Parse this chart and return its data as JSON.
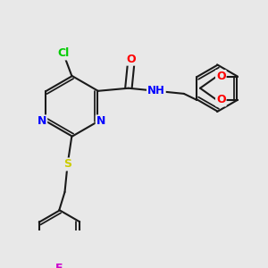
{
  "bg_color": "#e8e8e8",
  "bond_color": "#1a1a1a",
  "atom_colors": {
    "Cl": "#00cc00",
    "N": "#0000ff",
    "O": "#ff0000",
    "S": "#cccc00",
    "F": "#cc00cc",
    "H": "#1a1a1a",
    "C": "#1a1a1a"
  }
}
